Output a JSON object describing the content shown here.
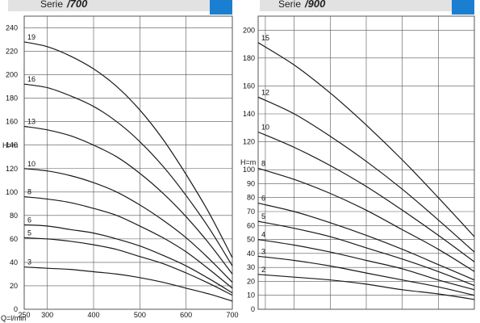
{
  "colors": {
    "header_bg": "#e2e2e2",
    "accent": "#1a7fd0",
    "curve": "#1a1a1a",
    "grid": "#555555"
  },
  "chart_data": [
    {
      "type": "line",
      "title_prefix": "Serie",
      "title": "/700",
      "ylabel": "H=m",
      "xlabel": "Q=l/min",
      "xlim": [
        250,
        700
      ],
      "ylim": [
        0,
        250
      ],
      "x_ticks": [
        250,
        300,
        400,
        500,
        600,
        700
      ],
      "y_ticks": [
        0,
        20,
        40,
        60,
        80,
        100,
        120,
        140,
        160,
        180,
        200,
        220,
        240
      ],
      "grid": true,
      "series": [
        {
          "name": "19",
          "x": [
            250,
            300,
            350,
            400,
            450,
            500,
            550,
            600,
            650,
            700
          ],
          "y": [
            228,
            224,
            216,
            205,
            190,
            170,
            145,
            115,
            82,
            44
          ]
        },
        {
          "name": "16",
          "x": [
            250,
            300,
            350,
            400,
            450,
            500,
            550,
            600,
            650,
            700
          ],
          "y": [
            192,
            189,
            182,
            173,
            160,
            143,
            122,
            97,
            69,
            37
          ]
        },
        {
          "name": "13",
          "x": [
            250,
            300,
            350,
            400,
            450,
            500,
            550,
            600,
            650,
            700
          ],
          "y": [
            156,
            153,
            148,
            140,
            130,
            116,
            99,
            79,
            56,
            30
          ]
        },
        {
          "name": "10",
          "x": [
            250,
            300,
            350,
            400,
            450,
            500,
            550,
            600,
            650,
            700
          ],
          "y": [
            120,
            118,
            114,
            108,
            100,
            89,
            76,
            61,
            43,
            23
          ]
        },
        {
          "name": "8",
          "x": [
            250,
            300,
            350,
            400,
            450,
            500,
            550,
            600,
            650,
            700
          ],
          "y": [
            96,
            94,
            91,
            86,
            80,
            71,
            61,
            49,
            34,
            18
          ]
        },
        {
          "name": "6",
          "x": [
            250,
            300,
            350,
            400,
            450,
            500,
            550,
            600,
            650,
            700
          ],
          "y": [
            72,
            71,
            68,
            65,
            60,
            54,
            46,
            37,
            26,
            14
          ]
        },
        {
          "name": "5",
          "x": [
            250,
            300,
            350,
            400,
            450,
            500,
            550,
            600,
            650,
            700
          ],
          "y": [
            61,
            60,
            58,
            55,
            51,
            45,
            39,
            31,
            22,
            12
          ]
        },
        {
          "name": "3",
          "x": [
            250,
            300,
            350,
            400,
            450,
            500,
            550,
            600,
            650,
            700
          ],
          "y": [
            36,
            35,
            34,
            32,
            30,
            27,
            23,
            18,
            13,
            7
          ]
        }
      ]
    },
    {
      "type": "line",
      "title_prefix": "Serie",
      "title": "/900",
      "ylabel": "H=m",
      "xlabel": "",
      "xlim": [
        400,
        1000
      ],
      "ylim": [
        0,
        210
      ],
      "x_ticks": [],
      "y_ticks": [
        0,
        10,
        20,
        30,
        40,
        50,
        60,
        70,
        80,
        90,
        100,
        120,
        140,
        160,
        180,
        200
      ],
      "grid": true,
      "series": [
        {
          "name": "15",
          "x": [
            400,
            500,
            600,
            700,
            800,
            900,
            1000
          ],
          "y": [
            191,
            175,
            155,
            132,
            107,
            80,
            52
          ]
        },
        {
          "name": "12",
          "x": [
            400,
            500,
            600,
            700,
            800,
            900,
            1000
          ],
          "y": [
            152,
            140,
            124,
            106,
            86,
            64,
            41
          ]
        },
        {
          "name": "10",
          "x": [
            400,
            500,
            600,
            700,
            800,
            900,
            1000
          ],
          "y": [
            127,
            116,
            103,
            88,
            71,
            53,
            34
          ]
        },
        {
          "name": "8",
          "x": [
            400,
            500,
            600,
            700,
            800,
            900,
            1000
          ],
          "y": [
            101,
            93,
            83,
            71,
            57,
            43,
            27
          ]
        },
        {
          "name": "6",
          "x": [
            400,
            500,
            600,
            700,
            800,
            900,
            1000
          ],
          "y": [
            76,
            70,
            62,
            53,
            43,
            32,
            21
          ]
        },
        {
          "name": "5",
          "x": [
            400,
            500,
            600,
            700,
            800,
            900,
            1000
          ],
          "y": [
            63,
            58,
            52,
            44,
            36,
            27,
            17
          ]
        },
        {
          "name": "4",
          "x": [
            400,
            500,
            600,
            700,
            800,
            900,
            1000
          ],
          "y": [
            50,
            46,
            41,
            35,
            29,
            21,
            14
          ]
        },
        {
          "name": "3",
          "x": [
            400,
            500,
            600,
            700,
            800,
            900,
            1000
          ],
          "y": [
            38,
            35,
            31,
            26,
            21,
            16,
            10
          ]
        },
        {
          "name": "2",
          "x": [
            400,
            500,
            600,
            700,
            800,
            900,
            1000
          ],
          "y": [
            25,
            23,
            21,
            18,
            14,
            11,
            7
          ]
        }
      ]
    }
  ]
}
